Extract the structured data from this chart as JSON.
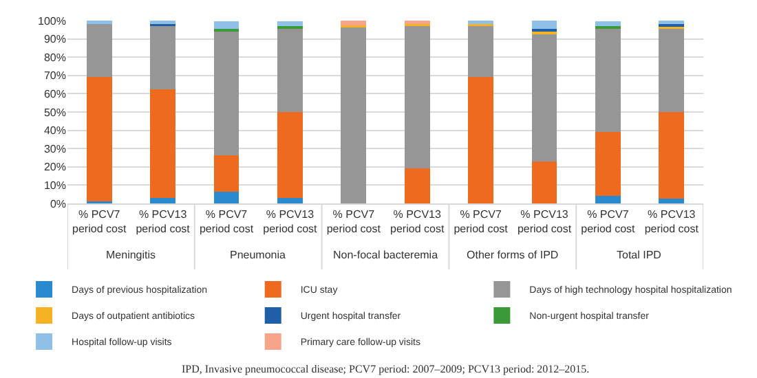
{
  "chart_data": {
    "type": "bar",
    "stacked": true,
    "categories": [
      "% PCV7 period cost",
      "% PCV13 period cost",
      "% PCV7 period cost",
      "% PCV13 period cost",
      "% PCV7 period cost",
      "% PCV13 period cost",
      "% PCV7 period cost",
      "% PCV13 period cost",
      "% PCV7 period cost",
      "% PCV13 period cost"
    ],
    "series": [
      {
        "name": "Days of previous hospitalization",
        "color": "#2a8ad0",
        "values": [
          1,
          3,
          6.5,
          3,
          0,
          0,
          0,
          0,
          4,
          2.5
        ]
      },
      {
        "name": "ICU stay",
        "color": "#ee6a1f",
        "values": [
          68,
          59.5,
          20,
          47,
          0,
          19,
          69,
          23,
          35,
          47.5
        ]
      },
      {
        "name": "Days of high technology hospital hospitalization",
        "color": "#969696",
        "values": [
          29,
          34.5,
          67.5,
          45.5,
          96.5,
          78.5,
          28.5,
          70,
          56.5,
          46
        ]
      },
      {
        "name": "Days of outpatient antibiotics",
        "color": "#f5b324",
        "values": [
          0,
          0,
          null,
          null,
          1,
          0.5,
          0.5,
          1,
          null,
          0.5
        ]
      },
      {
        "name": "Urgent hospital transfer",
        "color": "#1f5fa8",
        "values": [
          0,
          1,
          0,
          0,
          0,
          0,
          0,
          1.5,
          0,
          1.5
        ]
      },
      {
        "name": "Non-urgent hospital transfer",
        "color": "#3a9a3a",
        "values": [
          0,
          0,
          1.5,
          1.5,
          0,
          0,
          0,
          0,
          1.5,
          0
        ]
      },
      {
        "name": "Hospital follow-up visits",
        "color": "#8fc1e8",
        "values": [
          2,
          2,
          4,
          2.5,
          0,
          0,
          2,
          4.5,
          2.5,
          2
        ]
      },
      {
        "name": "Primary care follow-up visits",
        "color": "#f7a58a",
        "values": [
          0,
          0,
          0,
          0,
          2.5,
          2,
          0,
          0,
          0,
          0
        ]
      }
    ],
    "ylim": [
      0,
      100
    ],
    "yticks": [
      {
        "value": 0,
        "label": "0%"
      },
      {
        "value": 10,
        "label": "10%"
      },
      {
        "value": 20,
        "label": "20%"
      },
      {
        "value": 30,
        "label": "30%"
      },
      {
        "value": 40,
        "label": "40%"
      },
      {
        "value": 50,
        "label": "50%"
      },
      {
        "value": 60,
        "label": "60%"
      },
      {
        "value": 70,
        "label": "70%"
      },
      {
        "value": 80,
        "label": "80%"
      },
      {
        "value": 90,
        "label": "90%"
      },
      {
        "value": 100,
        "label": "100%"
      }
    ],
    "grid": "y",
    "legend": "bottom",
    "annotations": [
      "Meningitis",
      "Pneumonia",
      "Non-focal bacteremia",
      "Other forms of IPD",
      "Total IPD",
      "IPD, Invasive pneumococcal disease; PCV7 period: 2007–2009; PCV13 period: 2012–2015."
    ]
  }
}
